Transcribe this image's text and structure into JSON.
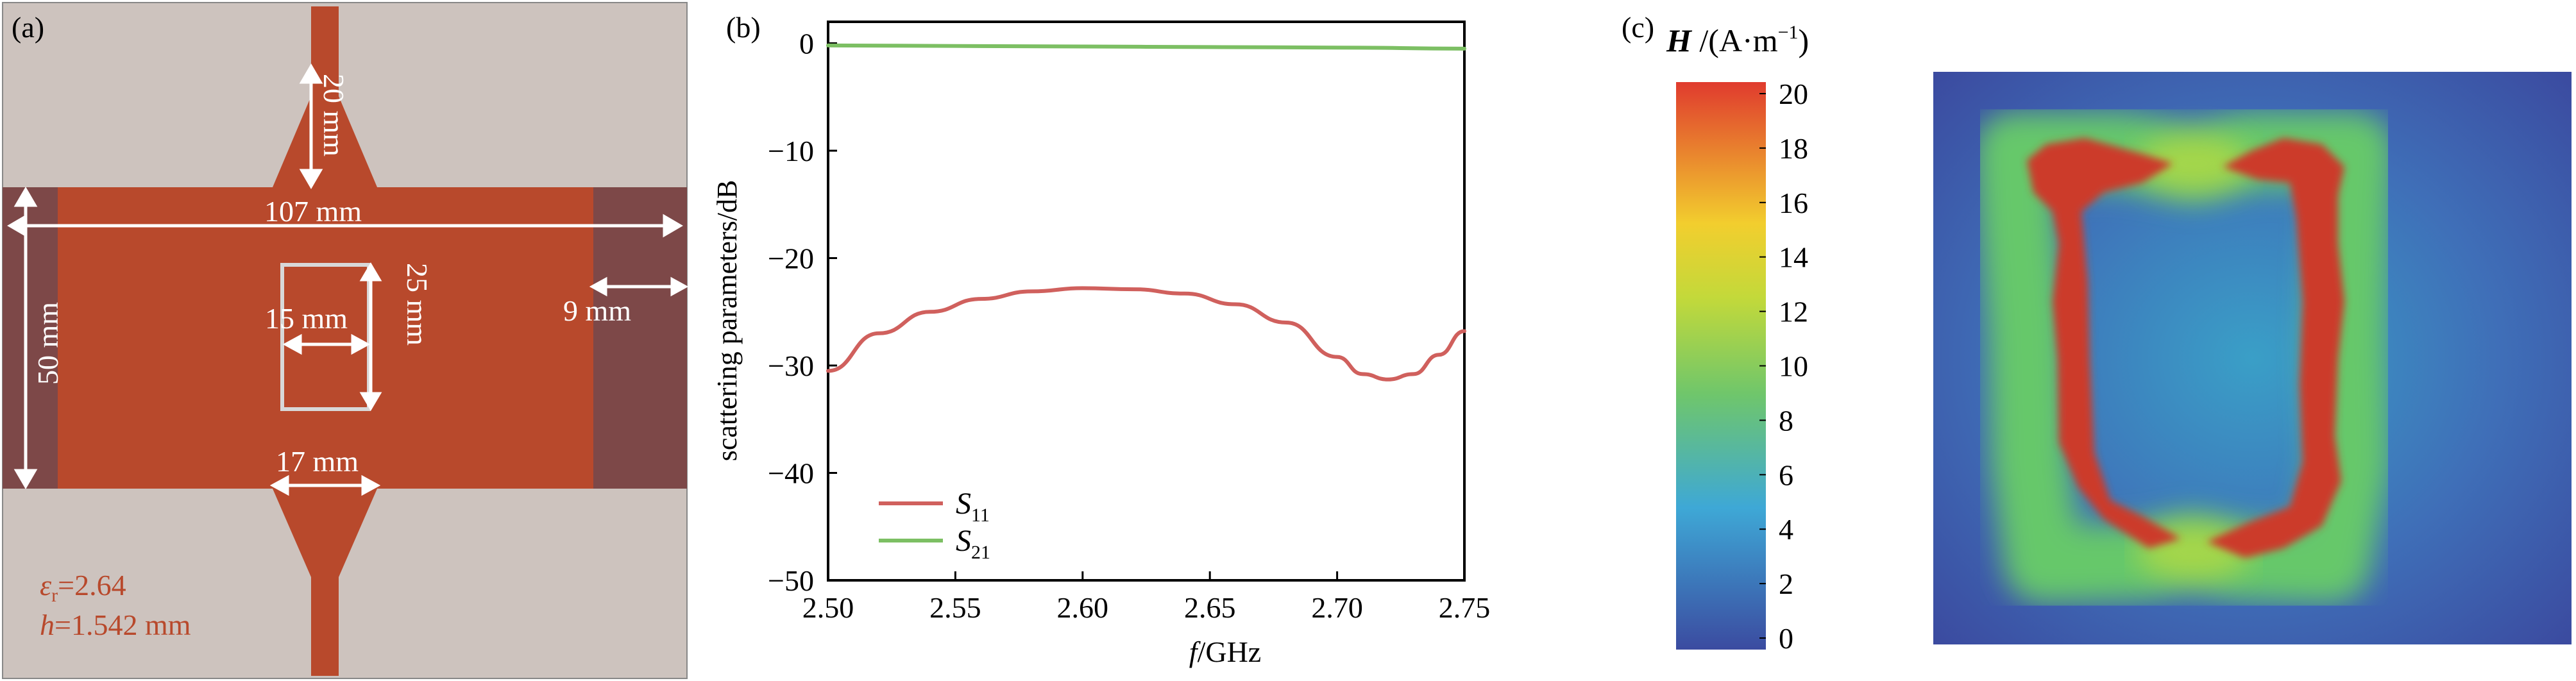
{
  "panel_a": {
    "label": "(a)",
    "dimensions": {
      "feed": "20 mm",
      "width": "107 mm",
      "height": "50 mm",
      "slot_w": "15 mm",
      "slot_h": "25 mm",
      "edge": "9 mm",
      "taper": "17 mm"
    },
    "material": {
      "eps_sym": "ε",
      "eps_sub": "r",
      "eps_val": "=2.64",
      "h_sym": "h",
      "h_val": "=1.542 mm"
    },
    "colors": {
      "substrate": "#cdc3be",
      "copper": "#b8492c",
      "edge": "#7d4848",
      "text_material": "#b8492c"
    }
  },
  "panel_b": {
    "label": "(b)"
  },
  "panel_c": {
    "label": "(c)",
    "colorbar_title_sym": "H",
    "colorbar_title_unit_pre": " /(A·m",
    "colorbar_title_sup": "−1",
    "colorbar_title_unit_post": ")",
    "ticks": [
      "20",
      "18",
      "16",
      "14",
      "12",
      "10",
      "8",
      "6",
      "4",
      "2",
      "0"
    ],
    "range": [
      0,
      20
    ],
    "colormap": [
      "#3b4ba0",
      "#3ea8d6",
      "#6fc66b",
      "#c3d93a",
      "#f2ce2e",
      "#e03b2e"
    ]
  },
  "chart_data": {
    "type": "line",
    "xlabel_sym": "f",
    "xlabel_unit": "/GHz",
    "ylabel": "scattering parameters/dB",
    "xlim": [
      2.5,
      2.75
    ],
    "ylim": [
      -50,
      2
    ],
    "xticks": [
      2.5,
      2.55,
      2.6,
      2.65,
      2.7,
      2.75
    ],
    "xtick_labels": [
      "2.50",
      "2.55",
      "2.60",
      "2.65",
      "2.70",
      "2.75"
    ],
    "yticks": [
      0,
      -10,
      -20,
      -30,
      -40,
      -50
    ],
    "ytick_labels": [
      "0",
      "−10",
      "−20",
      "−30",
      "−40",
      "−50"
    ],
    "grid": false,
    "legend_position": "bottom-left",
    "series": [
      {
        "name": "S",
        "sub": "11",
        "color": "#d0605d",
        "x": [
          2.5,
          2.52,
          2.54,
          2.56,
          2.58,
          2.6,
          2.62,
          2.64,
          2.66,
          2.68,
          2.7,
          2.71,
          2.72,
          2.73,
          2.74,
          2.75
        ],
        "y": [
          -30.5,
          -27.0,
          -25.0,
          -23.8,
          -23.1,
          -22.8,
          -22.9,
          -23.3,
          -24.3,
          -26.0,
          -29.2,
          -30.8,
          -31.3,
          -30.8,
          -29.0,
          -26.8
        ]
      },
      {
        "name": "S",
        "sub": "21",
        "color": "#7cbf63",
        "x": [
          2.5,
          2.55,
          2.6,
          2.65,
          2.7,
          2.75
        ],
        "y": [
          -0.2,
          -0.25,
          -0.3,
          -0.35,
          -0.4,
          -0.5
        ]
      }
    ]
  }
}
